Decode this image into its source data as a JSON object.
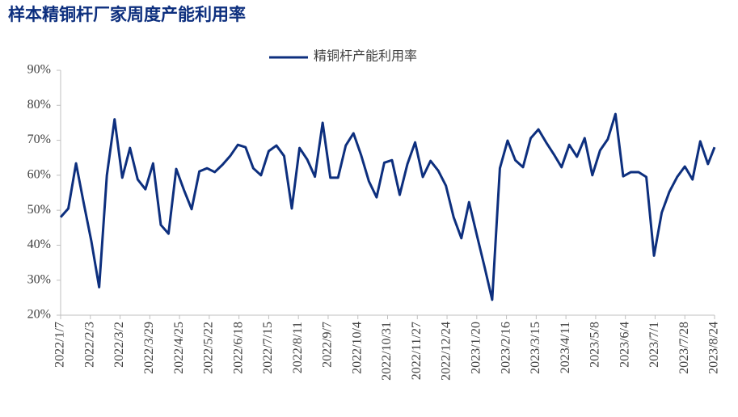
{
  "chart_data": {
    "type": "line",
    "title": "样本精铜杆厂家周度产能利用率",
    "x": [
      "2022/1/7",
      "2022/1/14",
      "2022/1/21",
      "2022/1/28",
      "2022/2/4",
      "2022/2/11",
      "2022/2/18",
      "2022/2/25",
      "2022/3/4",
      "2022/3/11",
      "2022/3/18",
      "2022/3/25",
      "2022/4/1",
      "2022/4/8",
      "2022/4/15",
      "2022/4/22",
      "2022/4/29",
      "2022/5/6",
      "2022/5/13",
      "2022/5/20",
      "2022/5/27",
      "2022/6/3",
      "2022/6/10",
      "2022/6/17",
      "2022/6/24",
      "2022/7/1",
      "2022/7/8",
      "2022/7/15",
      "2022/7/22",
      "2022/7/29",
      "2022/8/5",
      "2022/8/12",
      "2022/8/19",
      "2022/8/26",
      "2022/9/2",
      "2022/9/9",
      "2022/9/16",
      "2022/9/23",
      "2022/9/30",
      "2022/10/7",
      "2022/10/14",
      "2022/10/21",
      "2022/10/28",
      "2022/11/4",
      "2022/11/11",
      "2022/11/18",
      "2022/11/25",
      "2022/12/2",
      "2022/12/9",
      "2022/12/16",
      "2022/12/23",
      "2022/12/30",
      "2023/1/6",
      "2023/1/13",
      "2023/1/20",
      "2023/1/27",
      "2023/2/3",
      "2023/2/10",
      "2023/2/17",
      "2023/2/24",
      "2023/3/3",
      "2023/3/10",
      "2023/3/17",
      "2023/3/24",
      "2023/3/31",
      "2023/4/7",
      "2023/4/14",
      "2023/4/21",
      "2023/4/28",
      "2023/5/5",
      "2023/5/12",
      "2023/5/19",
      "2023/5/26",
      "2023/6/2",
      "2023/6/9",
      "2023/6/16",
      "2023/6/23",
      "2023/6/30",
      "2023/7/7",
      "2023/7/14",
      "2023/7/21",
      "2023/7/28",
      "2023/8/4",
      "2023/8/11",
      "2023/8/18",
      "2023/8/24"
    ],
    "series": [
      {
        "name": "精铜杆产能利用率",
        "color": "#0d2f7e",
        "values": [
          48,
          50.5,
          63.4,
          52,
          41,
          28,
          60,
          76,
          59.3,
          67.8,
          58.8,
          56,
          63.4,
          45.8,
          43.3,
          61.8,
          55.8,
          50.3,
          61.1,
          62,
          60.9,
          63,
          65.5,
          68.7,
          68,
          62,
          60,
          66.9,
          68.5,
          65.5,
          50.5,
          67.8,
          64.5,
          59.6,
          75,
          59.3,
          59.3,
          68.5,
          72,
          65.7,
          58.3,
          53.7,
          63.6,
          64.3,
          54.4,
          63.2,
          69.4,
          59.5,
          64.1,
          61.3,
          57,
          48,
          42,
          52.3,
          43,
          33.9,
          24.4,
          62,
          69.9,
          64.3,
          62.3,
          70.6,
          73.1,
          69.4,
          66,
          62.3,
          68.7,
          65.3,
          70.6,
          60,
          67.1,
          70.3,
          77.5,
          59.7,
          60.9,
          60.9,
          59.5,
          37,
          49.3,
          55.3,
          59.5,
          62.5,
          58.8,
          69.7,
          63.2,
          68
        ]
      }
    ],
    "xlim": [
      "2022/1/7",
      "2023/8/24"
    ],
    "xticks": [
      "2022/1/7",
      "2022/2/3",
      "2022/3/2",
      "2022/3/29",
      "2022/4/25",
      "2022/5/22",
      "2022/6/18",
      "2022/7/15",
      "2022/8/11",
      "2022/9/7",
      "2022/10/4",
      "2022/10/31",
      "2022/11/27",
      "2022/12/24",
      "2023/1/20",
      "2023/2/16",
      "2023/3/15",
      "2023/4/11",
      "2023/5/8",
      "2023/6/4",
      "2023/7/1",
      "2023/7/28",
      "2023/8/24"
    ],
    "ylim": [
      20,
      90
    ],
    "yticks": [
      {
        "value": 20,
        "label": "20%"
      },
      {
        "value": 30,
        "label": "30%"
      },
      {
        "value": 40,
        "label": "40%"
      },
      {
        "value": 50,
        "label": "50%"
      },
      {
        "value": 60,
        "label": "60%"
      },
      {
        "value": 70,
        "label": "70%"
      },
      {
        "value": 80,
        "label": "80%"
      },
      {
        "value": 90,
        "label": "90%"
      }
    ],
    "grid": false,
    "legend": "top"
  }
}
